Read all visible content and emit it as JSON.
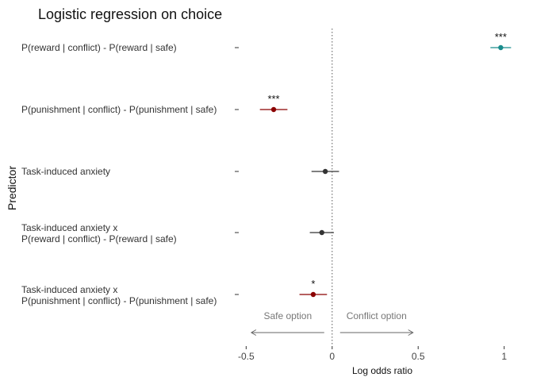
{
  "chart_data": {
    "type": "forest",
    "title": "Logistic regression on choice",
    "xlabel": "Log odds ratio",
    "ylabel": "Predictor",
    "xlim": [
      -0.52,
      1.02
    ],
    "xticks": [
      -0.5,
      0,
      0.5,
      1
    ],
    "xtick_labels": [
      "-0.5",
      "0",
      "0.5",
      "1"
    ],
    "reference_line": 0,
    "grid": false,
    "predictors": [
      {
        "label_lines": [
          "P(reward | conflict) - P(reward | safe)"
        ],
        "estimate": 0.98,
        "ci": [
          0.92,
          1.04
        ],
        "sig": "***",
        "color": "#1a8c8c"
      },
      {
        "label_lines": [
          "P(punishment | conflict) - P(punishment | safe)"
        ],
        "estimate": -0.34,
        "ci": [
          -0.42,
          -0.26
        ],
        "sig": "***",
        "color": "#8b0000"
      },
      {
        "label_lines": [
          "Task-induced anxiety"
        ],
        "estimate": -0.04,
        "ci": [
          -0.12,
          0.04
        ],
        "sig": "",
        "color": "#333333"
      },
      {
        "label_lines": [
          "Task-induced anxiety x",
          "P(reward | conflict) - P(reward | safe)"
        ],
        "estimate": -0.06,
        "ci": [
          -0.13,
          0.01
        ],
        "sig": "",
        "color": "#333333"
      },
      {
        "label_lines": [
          "Task-induced anxiety x",
          "P(punishment | conflict) - P(punishment | safe)"
        ],
        "estimate": -0.11,
        "ci": [
          -0.19,
          -0.03
        ],
        "sig": "*",
        "color": "#8b0000"
      }
    ],
    "annotations": {
      "left_label": "Safe option",
      "right_label": "Conflict option",
      "left_arrow_to": -0.47,
      "right_arrow_to": 0.47
    }
  }
}
